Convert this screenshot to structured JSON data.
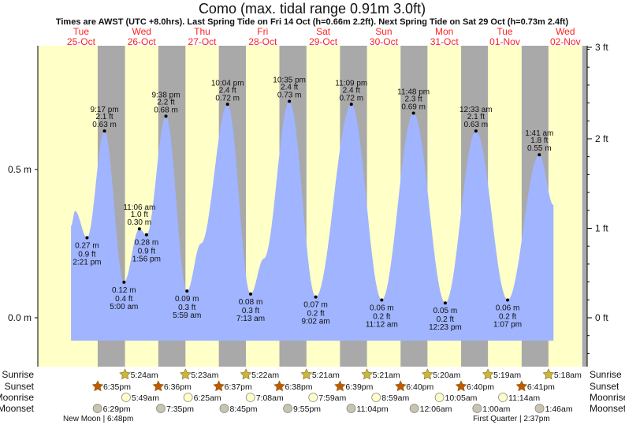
{
  "title": "Como (max. tidal range 0.91m 3.0ft)",
  "subtitle": "Times are AWST (UTC +8.0hrs). Last Spring Tide on Fri 14 Oct (h=0.66m 2.2ft). Next Spring Tide on Sat 29 Oct (h=0.73m 2.4ft)",
  "colors": {
    "day": "#ffffc8",
    "night": "#a9a9a9",
    "water": "#a0b4ff",
    "dayLabel": "#ff2222",
    "sun": "#c8b83c",
    "sunset": "#c05a00",
    "moonrise": "#ffffc8",
    "moonset": "#c8c4b0"
  },
  "chart_data": {
    "type": "area",
    "title": "Como (max. tidal range 0.91m 3.0ft)",
    "x_unit": "hours since Tue 25-Oct 00:00 AWST",
    "xlim": [
      -5,
      211
    ],
    "ylim_m": [
      -0.17,
      0.92
    ],
    "left_axis_ticks": [
      {
        "v": 0.5,
        "label": "0.5 m"
      },
      {
        "v": 0.0,
        "label": "0.0 m"
      }
    ],
    "right_axis_ticks": [
      {
        "v": 3,
        "label": "3 ft"
      },
      {
        "v": 2,
        "label": "2 ft"
      },
      {
        "v": 1,
        "label": "1 ft"
      },
      {
        "v": 0,
        "label": "0 ft"
      }
    ],
    "days": [
      {
        "dow": "Tue",
        "date": "25-Oct"
      },
      {
        "dow": "Wed",
        "date": "26-Oct"
      },
      {
        "dow": "Thu",
        "date": "27-Oct"
      },
      {
        "dow": "Fri",
        "date": "28-Oct"
      },
      {
        "dow": "Sat",
        "date": "29-Oct"
      },
      {
        "dow": "Sun",
        "date": "30-Oct"
      },
      {
        "dow": "Mon",
        "date": "31-Oct"
      },
      {
        "dow": "Tue",
        "date": "01-Nov"
      },
      {
        "dow": "Wed",
        "date": "02-Nov"
      }
    ],
    "nights": [
      [
        18.58,
        29.4
      ],
      [
        42.6,
        53.38
      ],
      [
        66.62,
        77.37
      ],
      [
        90.63,
        101.35
      ],
      [
        114.65,
        125.35
      ],
      [
        138.67,
        149.33
      ],
      [
        162.67,
        173.32
      ],
      [
        186.68,
        197.3
      ],
      [
        210.7,
        216
      ]
    ],
    "curve_knots": [
      {
        "t": 8,
        "h": 0.31
      },
      {
        "t": 9.6,
        "h": 0.36
      },
      {
        "t": 59.5,
        "h": 0.25
      },
      {
        "t": 84.5,
        "h": 0.2
      },
      {
        "t": 199.3,
        "h": 0.38
      }
    ],
    "tides": [
      {
        "t": 14.35,
        "h": 0.27,
        "m": "0.27 m",
        "ft": "0.9 ft",
        "time": "2:21 pm",
        "type": "low"
      },
      {
        "t": 21.28,
        "h": 0.63,
        "m": "0.63 m",
        "ft": "2.1 ft",
        "time": "9:17 pm",
        "type": "high"
      },
      {
        "t": 29.0,
        "h": 0.12,
        "m": "0.12 m",
        "ft": "0.4 ft",
        "time": "5:00 am",
        "type": "low"
      },
      {
        "t": 35.1,
        "h": 0.3,
        "m": "0.30 m",
        "ft": "1.0 ft",
        "time": "11:06 am",
        "type": "high"
      },
      {
        "t": 37.93,
        "h": 0.28,
        "m": "0.28 m",
        "ft": "0.9 ft",
        "time": "1:56 pm",
        "type": "low"
      },
      {
        "t": 45.63,
        "h": 0.68,
        "m": "0.68 m",
        "ft": "2.2 ft",
        "time": "9:38 pm",
        "type": "high"
      },
      {
        "t": 53.98,
        "h": 0.09,
        "m": "0.09 m",
        "ft": "0.3 ft",
        "time": "5:59 am",
        "type": "low"
      },
      {
        "t": 70.07,
        "h": 0.72,
        "m": "0.72 m",
        "ft": "2.4 ft",
        "time": "10:04 pm",
        "type": "high"
      },
      {
        "t": 79.22,
        "h": 0.08,
        "m": "0.08 m",
        "ft": "0.3 ft",
        "time": "7:13 am",
        "type": "low"
      },
      {
        "t": 94.58,
        "h": 0.73,
        "m": "0.73 m",
        "ft": "2.4 ft",
        "time": "10:35 pm",
        "type": "high"
      },
      {
        "t": 105.03,
        "h": 0.07,
        "m": "0.07 m",
        "ft": "0.2 ft",
        "time": "9:02 am",
        "type": "low"
      },
      {
        "t": 119.15,
        "h": 0.72,
        "m": "0.72 m",
        "ft": "2.4 ft",
        "time": "11:09 pm",
        "type": "high"
      },
      {
        "t": 131.2,
        "h": 0.06,
        "m": "0.06 m",
        "ft": "0.2 ft",
        "time": "11:12 am",
        "type": "low"
      },
      {
        "t": 143.8,
        "h": 0.69,
        "m": "0.69 m",
        "ft": "2.3 ft",
        "time": "11:48 pm",
        "type": "high"
      },
      {
        "t": 156.38,
        "h": 0.05,
        "m": "0.05 m",
        "ft": "0.2 ft",
        "time": "12:23 pm",
        "type": "low"
      },
      {
        "t": 168.55,
        "h": 0.63,
        "m": "0.63 m",
        "ft": "2.1 ft",
        "time": "12:33 am",
        "type": "high"
      },
      {
        "t": 181.12,
        "h": 0.06,
        "m": "0.06 m",
        "ft": "0.2 ft",
        "time": "1:07 pm",
        "type": "low"
      },
      {
        "t": 193.68,
        "h": 0.55,
        "m": "0.55 m",
        "ft": "1.8 ft",
        "time": "1:41 am",
        "type": "high"
      }
    ]
  },
  "astro": {
    "rows": [
      {
        "key": "sunrise",
        "label": "Sunrise",
        "events": [
          {
            "t": 29.4,
            "time": "5:24am"
          },
          {
            "t": 53.38,
            "time": "5:23am"
          },
          {
            "t": 77.37,
            "time": "5:22am"
          },
          {
            "t": 101.35,
            "time": "5:21am"
          },
          {
            "t": 125.35,
            "time": "5:21am"
          },
          {
            "t": 149.33,
            "time": "5:20am"
          },
          {
            "t": 173.32,
            "time": "5:19am"
          },
          {
            "t": 197.3,
            "time": "5:18am"
          }
        ]
      },
      {
        "key": "sunset",
        "label": "Sunset",
        "events": [
          {
            "t": 18.58,
            "time": "6:35pm"
          },
          {
            "t": 42.6,
            "time": "6:36pm"
          },
          {
            "t": 66.62,
            "time": "6:37pm"
          },
          {
            "t": 90.63,
            "time": "6:38pm"
          },
          {
            "t": 114.65,
            "time": "6:39pm"
          },
          {
            "t": 138.67,
            "time": "6:40pm"
          },
          {
            "t": 162.67,
            "time": "6:40pm"
          },
          {
            "t": 186.68,
            "time": "6:41pm"
          }
        ]
      },
      {
        "key": "moonrise",
        "label": "Moonrise",
        "events": [
          {
            "t": 29.82,
            "time": "5:49am"
          },
          {
            "t": 54.42,
            "time": "6:25am"
          },
          {
            "t": 79.13,
            "time": "7:08am"
          },
          {
            "t": 103.98,
            "time": "7:59am"
          },
          {
            "t": 128.98,
            "time": "8:59am"
          },
          {
            "t": 154.08,
            "time": "10:05am"
          },
          {
            "t": 179.23,
            "time": "11:14am"
          }
        ]
      },
      {
        "key": "moonset",
        "label": "Moonset",
        "events": [
          {
            "t": 18.48,
            "time": "6:29pm"
          },
          {
            "t": 43.58,
            "time": "7:35pm"
          },
          {
            "t": 68.75,
            "time": "8:45pm"
          },
          {
            "t": 93.92,
            "time": "9:55pm"
          },
          {
            "t": 119.07,
            "time": "11:04pm"
          },
          {
            "t": 144.1,
            "time": "12:06am"
          },
          {
            "t": 169.0,
            "time": "1:00am"
          },
          {
            "t": 193.77,
            "time": "1:46am"
          }
        ]
      }
    ],
    "phases": [
      {
        "t": 18.8,
        "text": "New Moon | 6:48pm"
      },
      {
        "t": 182.62,
        "text": "First Quarter | 2:37pm"
      }
    ]
  }
}
